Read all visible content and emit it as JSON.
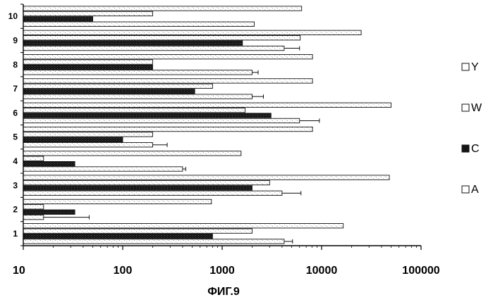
{
  "chart_data": {
    "type": "bar",
    "orientation": "horizontal",
    "caption": "ФИГ.9",
    "x_scale": "log",
    "xlim": [
      10,
      100000
    ],
    "x_ticks": [
      "10",
      "100",
      "1000",
      "10000",
      "100000"
    ],
    "x_tick_values": [
      10,
      100,
      1000,
      10000,
      100000
    ],
    "grid": false,
    "legend_placement": "right",
    "categories": [
      "1",
      "2",
      "3",
      "4",
      "5",
      "6",
      "7",
      "8",
      "9",
      "10"
    ],
    "series": [
      {
        "name": "A",
        "color": "#ffffff",
        "values": [
          4200,
          16,
          4000,
          400,
          200,
          6000,
          2000,
          2000,
          4200,
          2100
        ],
        "errors": [
          900,
          30,
          2200,
          30,
          80,
          3500,
          600,
          300,
          1800,
          null
        ]
      },
      {
        "name": "C",
        "color": "#1a1a1a",
        "values": [
          800,
          33,
          2000,
          33,
          100,
          3100,
          530,
          200,
          1600,
          50
        ],
        "errors": [
          null,
          null,
          null,
          null,
          null,
          null,
          null,
          null,
          null,
          null
        ]
      },
      {
        "name": "W",
        "color": "#ffffff",
        "values": [
          2000,
          16,
          3000,
          16,
          200,
          1700,
          800,
          200,
          6100,
          200
        ],
        "errors": [
          null,
          null,
          null,
          null,
          null,
          null,
          null,
          null,
          null,
          null
        ]
      },
      {
        "name": "Y",
        "color": "#ffffff",
        "values": [
          16500,
          780,
          48000,
          1550,
          8100,
          50000,
          8100,
          8100,
          25000,
          6300
        ],
        "errors": [
          null,
          null,
          null,
          null,
          null,
          null,
          null,
          null,
          null,
          null
        ]
      }
    ]
  }
}
